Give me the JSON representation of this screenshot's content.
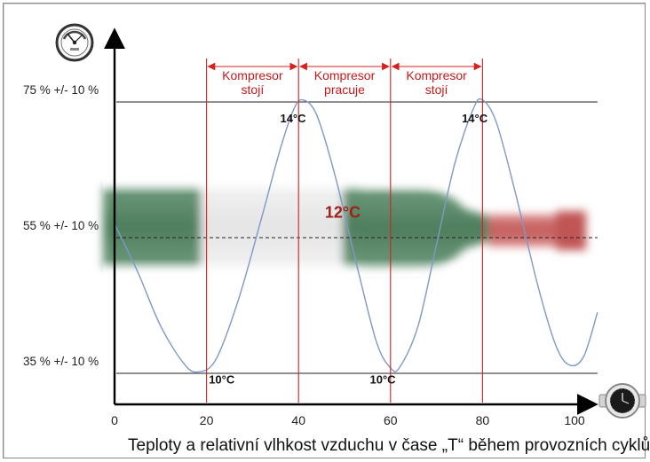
{
  "chart_data": {
    "type": "line",
    "title": "",
    "caption": "Teploty a relativní vlhkost vzduchu v čase „T“  během provozních cyklů",
    "xlabel": "",
    "ylabel": "",
    "x_ticks": [
      0,
      20,
      40,
      60,
      80,
      100
    ],
    "xlim": [
      0,
      105
    ],
    "y_levels": [
      {
        "label": "75 % +/- 10 %",
        "value": 75
      },
      {
        "label": "55 % +/- 10 %",
        "value": 55
      },
      {
        "label": "35 % +/- 10 %",
        "value": 35
      }
    ],
    "ylim": [
      28,
      88
    ],
    "series": [
      {
        "color": "#7f98c8",
        "points": [
          {
            "x": 0,
            "y": 57
          },
          {
            "x": 5,
            "y": 50
          },
          {
            "x": 10,
            "y": 42
          },
          {
            "x": 15,
            "y": 36.5
          },
          {
            "x": 18,
            "y": 35.2
          },
          {
            "x": 22,
            "y": 37
          },
          {
            "x": 27,
            "y": 46
          },
          {
            "x": 32,
            "y": 58
          },
          {
            "x": 36,
            "y": 68
          },
          {
            "x": 39,
            "y": 74
          },
          {
            "x": 41,
            "y": 75.3
          },
          {
            "x": 44,
            "y": 73
          },
          {
            "x": 48,
            "y": 64
          },
          {
            "x": 53,
            "y": 50
          },
          {
            "x": 57,
            "y": 39.5
          },
          {
            "x": 60,
            "y": 35.8
          },
          {
            "x": 62,
            "y": 35.9
          },
          {
            "x": 66,
            "y": 42
          },
          {
            "x": 70,
            "y": 54
          },
          {
            "x": 74,
            "y": 66
          },
          {
            "x": 78,
            "y": 74
          },
          {
            "x": 80,
            "y": 75.3
          },
          {
            "x": 83,
            "y": 72
          },
          {
            "x": 87,
            "y": 62
          },
          {
            "x": 92,
            "y": 48
          },
          {
            "x": 96,
            "y": 39
          },
          {
            "x": 99,
            "y": 36.2
          },
          {
            "x": 102,
            "y": 37.5
          },
          {
            "x": 105,
            "y": 44
          }
        ]
      }
    ],
    "phase_dividers": [
      20,
      40,
      60,
      80
    ],
    "phases": [
      {
        "from": 20,
        "to": 40,
        "label_line1": "Kompresor",
        "label_line2": "stojí"
      },
      {
        "from": 40,
        "to": 60,
        "label_line1": "Kompresor",
        "label_line2": "pracuje"
      },
      {
        "from": 60,
        "to": 80,
        "label_line1": "Kompresor",
        "label_line2": "stojí"
      }
    ],
    "annotations": [
      {
        "text": "14°C",
        "x": 36,
        "y": 72
      },
      {
        "text": "14°C",
        "x": 75.5,
        "y": 72
      },
      {
        "text": "10°C",
        "x": 20.5,
        "y": 33.5
      },
      {
        "text": "10°C",
        "x": 55.5,
        "y": 33.5
      }
    ],
    "center_label": {
      "text": "12°C",
      "x": 50,
      "y": 59
    },
    "colors": {
      "axis": "#000000",
      "phase": "#d42020",
      "phase_text": "#c41a1a",
      "curve": "#7f98c8",
      "center_label": "#a0201a",
      "level_line": "#222222"
    },
    "icons": [
      "hygrometer-icon",
      "wristwatch-icon"
    ]
  }
}
